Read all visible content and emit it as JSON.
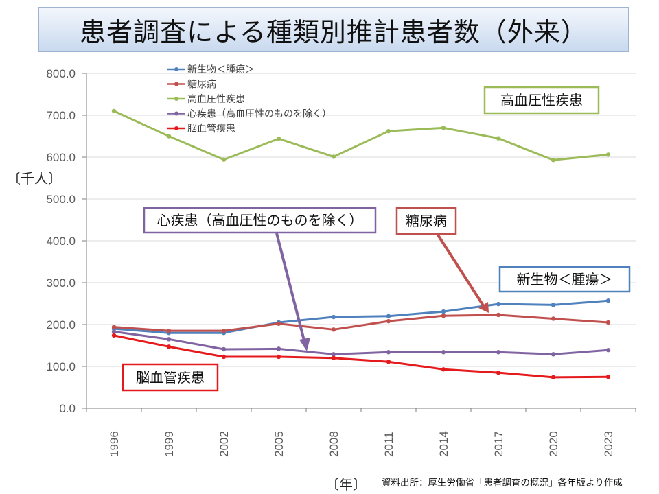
{
  "title": "患者調査による種類別推計患者数（外来）",
  "y_unit_label": "〔千人〕",
  "x_unit_label": "〔年〕",
  "source": "資料出所：厚生労働省「患者調査の概況」各年版より作成",
  "chart_data": {
    "type": "line",
    "title": "患者調査による種類別推計患者数（外来）",
    "xlabel": "〔年〕",
    "ylabel": "〔千人〕",
    "ylim": [
      0,
      800
    ],
    "y_ticks": [
      "0.0",
      "100.0",
      "200.0",
      "300.0",
      "400.0",
      "500.0",
      "600.0",
      "700.0",
      "800.0"
    ],
    "categories": [
      "1996",
      "1999",
      "2002",
      "2005",
      "2008",
      "2011",
      "2014",
      "2017",
      "2020",
      "2023"
    ],
    "grid": true,
    "legend_position": "top-left",
    "series": [
      {
        "name": "新生物＜腫瘍＞",
        "color": "#4f81bd",
        "values": [
          190,
          180,
          180,
          205,
          218,
          220,
          231,
          249,
          247,
          257
        ]
      },
      {
        "name": "糖尿病",
        "color": "#c0504d",
        "values": [
          194,
          185,
          185,
          202,
          188,
          208,
          221,
          223,
          214,
          205
        ]
      },
      {
        "name": "高血圧性疾患",
        "color": "#9bbb59",
        "values": [
          710,
          650,
          594,
          644,
          601,
          662,
          670,
          645,
          593,
          606
        ]
      },
      {
        "name": "心疾患（高血圧性のものを除く）",
        "color": "#8064a2",
        "values": [
          183,
          165,
          141,
          142,
          129,
          134,
          134,
          134,
          129,
          139
        ]
      },
      {
        "name": "脳血管疾患",
        "color": "#e41a1c",
        "values": [
          174,
          147,
          123,
          123,
          120,
          111,
          93,
          85,
          74,
          75
        ]
      }
    ],
    "annotations": [
      {
        "text": "高血圧性疾患",
        "color": "#9bbb59"
      },
      {
        "text": "心疾患（高血圧性のものを除く）",
        "color": "#8064a2"
      },
      {
        "text": "糖尿病",
        "color": "#c0504d"
      },
      {
        "text": "新生物＜腫瘍＞",
        "color": "#4f81bd"
      },
      {
        "text": "脳血管疾患",
        "color": "#e41a1c"
      }
    ]
  }
}
